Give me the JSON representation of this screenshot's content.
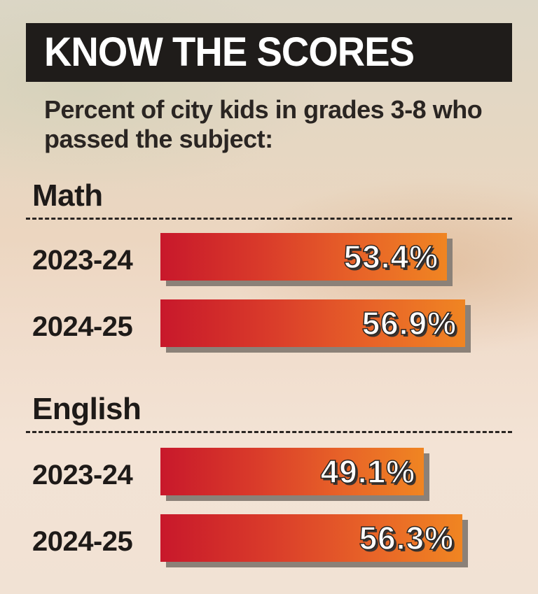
{
  "header": {
    "title": "KNOW THE SCORES",
    "subtitle": "Percent of city kids in grades 3-8 who passed the subject:"
  },
  "colors": {
    "title_bar": "#1f1c1a",
    "bar_start": "#c8182b",
    "bar_end": "#f08522",
    "text_dark": "#1e1a18"
  },
  "chart_data": {
    "type": "bar",
    "orientation": "horizontal",
    "title": "KNOW THE SCORES",
    "subtitle": "Percent of city kids in grades 3-8 who passed the subject:",
    "groups": [
      {
        "name": "Math",
        "rows": [
          {
            "label": "2023-24",
            "value": 53.4,
            "display": "53.4%"
          },
          {
            "label": "2024-25",
            "value": 56.9,
            "display": "56.9%"
          }
        ]
      },
      {
        "name": "English",
        "rows": [
          {
            "label": "2023-24",
            "value": 49.1,
            "display": "49.1%"
          },
          {
            "label": "2024-25",
            "value": 56.3,
            "display": "56.3%"
          }
        ]
      }
    ],
    "unit": "%"
  }
}
